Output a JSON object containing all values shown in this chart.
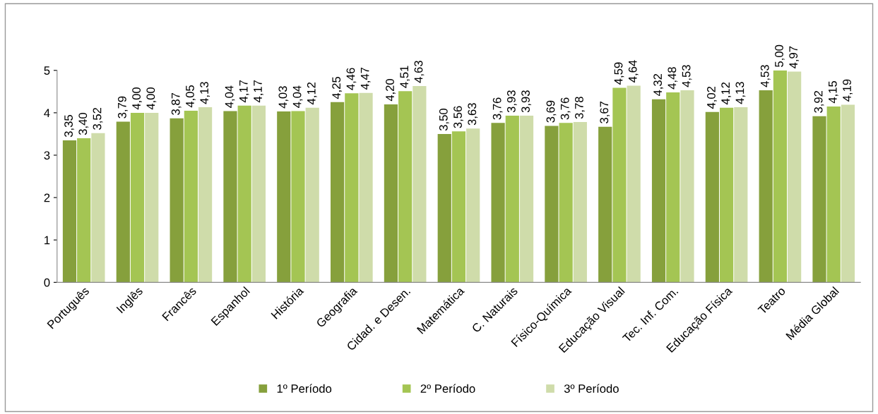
{
  "chart_data": {
    "type": "bar",
    "categories": [
      "Português",
      "Inglês",
      "Francês",
      "Espanhol",
      "História",
      "Geografia",
      "Cidad. e Desen.",
      "Matemática",
      "C. Naturais",
      "Físico-Química",
      "Educação Visual",
      "Tec. Inf. Com.",
      "Educação Física",
      "Teatro",
      "Média Global"
    ],
    "series": [
      {
        "name": "1º Período",
        "color": "#86a03c",
        "values": [
          3.35,
          3.79,
          3.87,
          4.04,
          4.03,
          4.25,
          4.2,
          3.5,
          3.76,
          3.69,
          3.67,
          4.32,
          4.02,
          4.53,
          3.92
        ],
        "value_labels": [
          "3,35",
          "3,79",
          "3,87",
          "4,04",
          "4,03",
          "4,25",
          "4,20",
          "3,50",
          "3,76",
          "3,69",
          "3,67",
          "4,32",
          "4,02",
          "4,53",
          "3,92"
        ]
      },
      {
        "name": "2º Período",
        "color": "#a4c553",
        "values": [
          3.4,
          4.0,
          4.05,
          4.17,
          4.04,
          4.46,
          4.51,
          3.56,
          3.93,
          3.76,
          4.59,
          4.48,
          4.12,
          5.0,
          4.15
        ],
        "value_labels": [
          "3,40",
          "4,00",
          "4,05",
          "4,17",
          "4,04",
          "4,46",
          "4,51",
          "3,56",
          "3,93",
          "3,76",
          "4,59",
          "4,48",
          "4,12",
          "5,00",
          "4,15"
        ]
      },
      {
        "name": "3º Período",
        "color": "#cfdcaa",
        "values": [
          3.52,
          4.0,
          4.13,
          4.17,
          4.12,
          4.47,
          4.63,
          3.63,
          3.93,
          3.78,
          4.64,
          4.53,
          4.13,
          4.97,
          4.19
        ],
        "value_labels": [
          "3,52",
          "4,00",
          "4,13",
          "4,17",
          "4,12",
          "4,47",
          "4,63",
          "3,63",
          "3,93",
          "3,78",
          "4,64",
          "4,53",
          "4,13",
          "4,97",
          "4,19"
        ]
      }
    ],
    "ylim": [
      0,
      5
    ],
    "yticks": [
      0,
      1,
      2,
      3,
      4,
      5
    ],
    "grid": false,
    "legend": "bottom"
  }
}
